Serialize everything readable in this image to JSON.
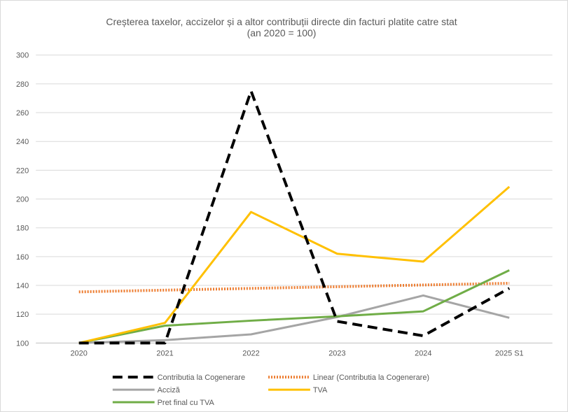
{
  "chart_data": {
    "type": "line",
    "title": "Creșterea taxelor, accizelor și a altor contribuții directe din facturi platite catre stat",
    "subtitle": "(an 2020 = 100)",
    "xlabel": "",
    "ylabel": "",
    "categories": [
      "2020",
      "2021",
      "2022",
      "2023",
      "2024",
      "2025 S1"
    ],
    "ylim": [
      100,
      300
    ],
    "yticks": [
      100,
      120,
      140,
      160,
      180,
      200,
      220,
      240,
      260,
      280,
      300
    ],
    "grid": true,
    "legend_position": "bottom",
    "series": [
      {
        "name": "Contributia la Cogenerare",
        "values": [
          100,
          100,
          275,
          115,
          105,
          138
        ],
        "color": "#000000",
        "style": "dash"
      },
      {
        "name": "Linear (Contributia la Cogenerare)",
        "values": [
          135.5,
          136.7,
          137.9,
          139.1,
          140.3,
          141.5
        ],
        "color": "#ed7d31",
        "style": "dot"
      },
      {
        "name": "Acciză",
        "values": [
          100,
          102,
          106,
          118,
          133,
          117.5
        ],
        "color": "#a5a5a5",
        "style": "solid"
      },
      {
        "name": "TVA",
        "values": [
          100,
          114,
          191,
          162,
          156.5,
          208.5
        ],
        "color": "#ffc000",
        "style": "solid"
      },
      {
        "name": "Pret final cu TVA",
        "values": [
          100,
          112,
          115.5,
          118.5,
          122,
          150.5
        ],
        "color": "#70ad47",
        "style": "solid"
      }
    ]
  }
}
